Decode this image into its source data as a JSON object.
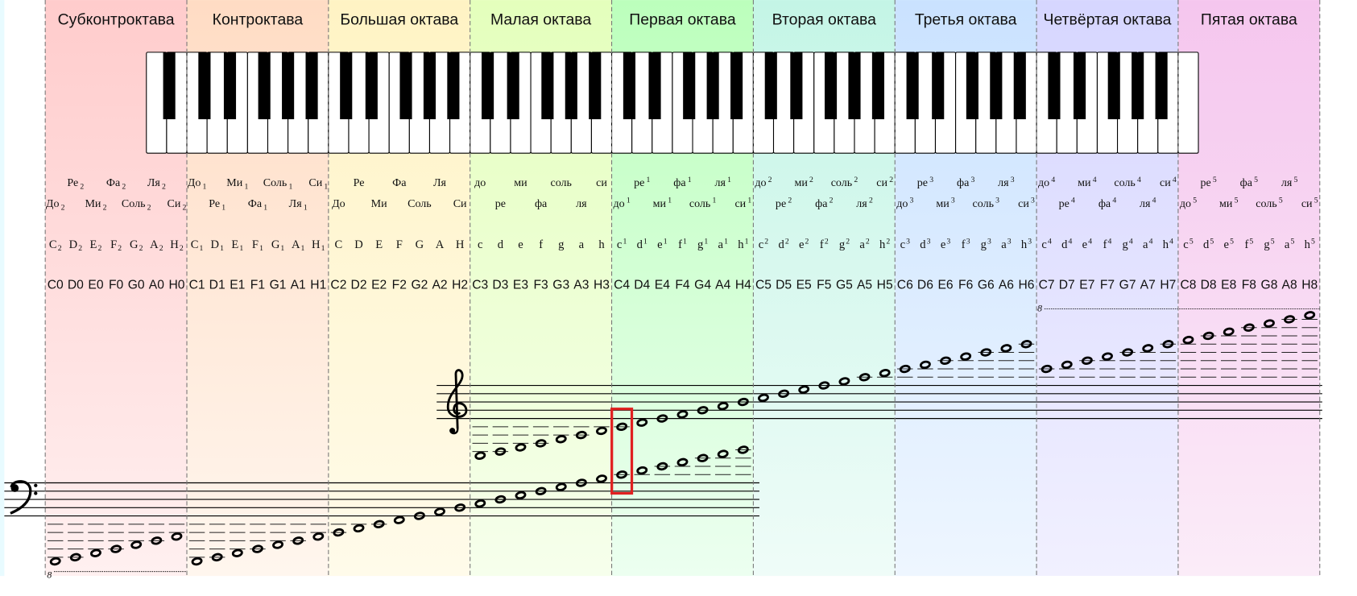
{
  "octaves": [
    {
      "name": "Субконтроктава",
      "solfege": [
        "До",
        "Ре",
        "Ми",
        "Фа",
        "Соль",
        "Ля",
        "Си"
      ],
      "solfege_index": "2",
      "index_position": "sub",
      "letters": [
        "C",
        "D",
        "E",
        "F",
        "G",
        "A",
        "H"
      ],
      "letter_index": "2",
      "scientific": [
        "C0",
        "D0",
        "E0",
        "F0",
        "G0",
        "A0",
        "H0"
      ],
      "color_top": "#ffcccc",
      "color_bottom": "#fff0f0"
    },
    {
      "name": "Контроктава",
      "solfege": [
        "До",
        "Ре",
        "Ми",
        "Фа",
        "Соль",
        "Ля",
        "Си"
      ],
      "solfege_index": "1",
      "index_position": "sub",
      "letters": [
        "C",
        "D",
        "E",
        "F",
        "G",
        "A",
        "H"
      ],
      "letter_index": "1",
      "scientific": [
        "C1",
        "D1",
        "E1",
        "F1",
        "G1",
        "A1",
        "H1"
      ],
      "color_top": "#ffdcc4",
      "color_bottom": "#fff6ee"
    },
    {
      "name": "Большая октава",
      "solfege": [
        "До",
        "Ре",
        "Ми",
        "Фа",
        "Соль",
        "Ля",
        "Си"
      ],
      "solfege_index": "",
      "index_position": "none",
      "letters": [
        "C",
        "D",
        "E",
        "F",
        "G",
        "A",
        "H"
      ],
      "letter_index": "",
      "scientific": [
        "C2",
        "D2",
        "E2",
        "F2",
        "G2",
        "A2",
        "H2"
      ],
      "color_top": "#fff3c4",
      "color_bottom": "#fffbea"
    },
    {
      "name": "Малая октава",
      "solfege": [
        "до",
        "ре",
        "ми",
        "фа",
        "соль",
        "ля",
        "си"
      ],
      "solfege_index": "",
      "index_position": "none",
      "letters": [
        "c",
        "d",
        "e",
        "f",
        "g",
        "a",
        "h"
      ],
      "letter_index": "",
      "scientific": [
        "C3",
        "D3",
        "E3",
        "F3",
        "G3",
        "A3",
        "H3"
      ],
      "color_top": "#e4ffbc",
      "color_bottom": "#f6ffec"
    },
    {
      "name": "Первая октава",
      "solfege": [
        "до",
        "ре",
        "ми",
        "фа",
        "соль",
        "ля",
        "си"
      ],
      "solfege_index": "1",
      "index_position": "sup",
      "letters": [
        "c",
        "d",
        "e",
        "f",
        "g",
        "a",
        "h"
      ],
      "letter_index": "1",
      "scientific": [
        "C4",
        "D4",
        "E4",
        "F4",
        "G4",
        "A4",
        "H4"
      ],
      "color_top": "#bcffbc",
      "color_bottom": "#ecfff0"
    },
    {
      "name": "Вторая октава",
      "solfege": [
        "до",
        "ре",
        "ми",
        "фа",
        "соль",
        "ля",
        "си"
      ],
      "solfege_index": "2",
      "index_position": "sup",
      "letters": [
        "c",
        "d",
        "e",
        "f",
        "g",
        "a",
        "h"
      ],
      "letter_index": "2",
      "scientific": [
        "C5",
        "D5",
        "E5",
        "F5",
        "G5",
        "A5",
        "H5"
      ],
      "color_top": "#c4f5e6",
      "color_bottom": "#effcf8"
    },
    {
      "name": "Третья октава",
      "solfege": [
        "до",
        "ре",
        "ми",
        "фа",
        "соль",
        "ля",
        "си"
      ],
      "solfege_index": "3",
      "index_position": "sup",
      "letters": [
        "c",
        "d",
        "e",
        "f",
        "g",
        "a",
        "h"
      ],
      "letter_index": "3",
      "scientific": [
        "C6",
        "D6",
        "E6",
        "F6",
        "G6",
        "A6",
        "H6"
      ],
      "color_top": "#cae2ff",
      "color_bottom": "#eef6ff"
    },
    {
      "name": "Четвёртая октава",
      "solfege": [
        "до",
        "ре",
        "ми",
        "фа",
        "соль",
        "ля",
        "си"
      ],
      "solfege_index": "4",
      "index_position": "sup",
      "letters": [
        "c",
        "d",
        "e",
        "f",
        "g",
        "a",
        "h"
      ],
      "letter_index": "4",
      "scientific": [
        "C7",
        "D7",
        "E7",
        "F7",
        "G7",
        "A7",
        "H7"
      ],
      "color_top": "#d6d6ff",
      "color_bottom": "#f1f0ff"
    },
    {
      "name": "Пятая октава",
      "solfege": [
        "до",
        "ре",
        "ми",
        "фа",
        "соль",
        "ля",
        "си"
      ],
      "solfege_index": "5",
      "index_position": "sup",
      "letters": [
        "c",
        "d",
        "e",
        "f",
        "g",
        "a",
        "h"
      ],
      "letter_index": "5",
      "scientific": [
        "C8",
        "D8",
        "E8",
        "F8",
        "G8",
        "A8",
        "H8"
      ],
      "color_top": "#f5c6ee",
      "color_bottom": "#fbecf8"
    }
  ],
  "keyboard": {
    "lowest_key": "A0",
    "highest_key": "C8"
  },
  "staves": {
    "treble": {
      "clef": "treble-clef",
      "range": [
        "C3",
        "H8"
      ],
      "ottava_alta": {
        "label": "8",
        "from_octave": 7
      }
    },
    "bass": {
      "clef": "bass-clef",
      "range": [
        "C0",
        "H4"
      ],
      "ottava_bassa": {
        "label": "8",
        "to_octave": 0
      }
    }
  },
  "highlight": {
    "note": "C4",
    "color": "#e02020"
  }
}
